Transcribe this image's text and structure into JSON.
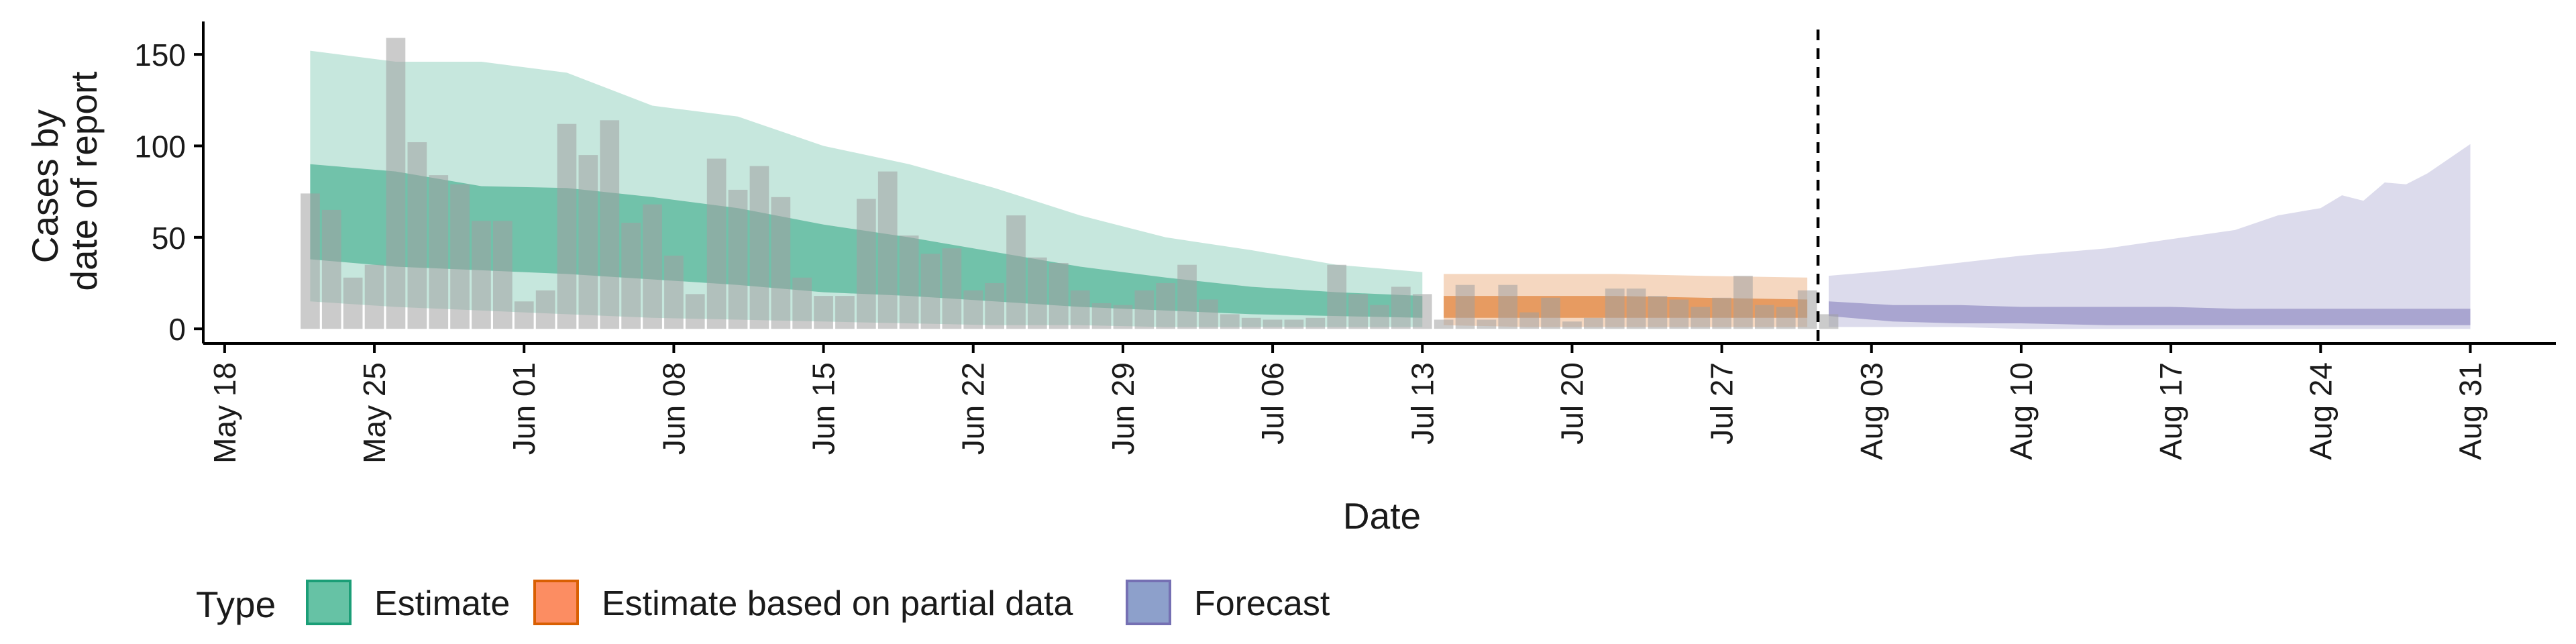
{
  "chart_data": {
    "type": "area",
    "xlabel": "Date",
    "ylabel_lines": [
      "Cases by",
      "date of report"
    ],
    "xlim": [
      "2020-05-17",
      "2020-09-04"
    ],
    "ylim": [
      -8,
      168
    ],
    "yticks": [
      0,
      50,
      100,
      150
    ],
    "xticks": [
      {
        "date": "2020-05-18",
        "label": "May 18"
      },
      {
        "date": "2020-05-25",
        "label": "May 25"
      },
      {
        "date": "2020-06-01",
        "label": "Jun 01"
      },
      {
        "date": "2020-06-08",
        "label": "Jun 08"
      },
      {
        "date": "2020-06-15",
        "label": "Jun 15"
      },
      {
        "date": "2020-06-22",
        "label": "Jun 22"
      },
      {
        "date": "2020-06-29",
        "label": "Jun 29"
      },
      {
        "date": "2020-07-06",
        "label": "Jul 06"
      },
      {
        "date": "2020-07-13",
        "label": "Jul 13"
      },
      {
        "date": "2020-07-20",
        "label": "Jul 20"
      },
      {
        "date": "2020-07-27",
        "label": "Jul 27"
      },
      {
        "date": "2020-08-03",
        "label": "Aug 03"
      },
      {
        "date": "2020-08-10",
        "label": "Aug 10"
      },
      {
        "date": "2020-08-17",
        "label": "Aug 17"
      },
      {
        "date": "2020-08-24",
        "label": "Aug 24"
      },
      {
        "date": "2020-08-31",
        "label": "Aug 31"
      }
    ],
    "forecast_line_date": "2020-08-01",
    "grid": false,
    "legend": {
      "title": "Type",
      "placement": "bottom-left",
      "entries": [
        {
          "label": "Estimate",
          "fill": "#66c2a5",
          "stroke": "#1b9e77"
        },
        {
          "label": "Estimate based on partial data",
          "fill": "#fc8d62",
          "stroke": "#d95f02"
        },
        {
          "label": "Forecast",
          "fill": "#8da0cb",
          "stroke": "#7570b3"
        }
      ]
    },
    "colors": {
      "estimate": "#1b9e77",
      "partial": "#d95f02",
      "forecast": "#7570b3",
      "bars": "#a0a0a0"
    },
    "reported_cases": {
      "start_date": "2020-05-22",
      "values": [
        74,
        65,
        28,
        35,
        159,
        102,
        84,
        79,
        59,
        59,
        15,
        21,
        112,
        95,
        114,
        58,
        68,
        40,
        19,
        93,
        76,
        89,
        72,
        28,
        18,
        18,
        71,
        86,
        51,
        41,
        44,
        21,
        25,
        62,
        39,
        36,
        21,
        14,
        13,
        21,
        25,
        35,
        16,
        8,
        6,
        5,
        5,
        6,
        35,
        19,
        13,
        23,
        19,
        5,
        24,
        5,
        24,
        9,
        17,
        4,
        6,
        22,
        22,
        18,
        16,
        12,
        17,
        29,
        13,
        12,
        21,
        8
      ]
    },
    "series": [
      {
        "name": "Estimate",
        "category": "estimate",
        "x": [
          "2020-05-22",
          "2020-05-26",
          "2020-05-30",
          "2020-06-03",
          "2020-06-07",
          "2020-06-11",
          "2020-06-15",
          "2020-06-19",
          "2020-06-23",
          "2020-06-27",
          "2020-07-01",
          "2020-07-05",
          "2020-07-09",
          "2020-07-13"
        ],
        "outer_upper": [
          152,
          146,
          146,
          140,
          122,
          116,
          100,
          90,
          77,
          62,
          50,
          43,
          35,
          31
        ],
        "outer_lower": [
          15,
          12,
          10,
          8,
          6,
          5,
          4,
          3,
          2,
          2,
          1,
          1,
          1,
          1
        ],
        "inner_upper": [
          90,
          86,
          78,
          77,
          72,
          66,
          57,
          50,
          42,
          34,
          28,
          23,
          20,
          18
        ],
        "inner_lower": [
          38,
          34,
          32,
          30,
          27,
          24,
          20,
          18,
          15,
          12,
          10,
          8,
          7,
          6
        ]
      },
      {
        "name": "Estimate based on partial data",
        "category": "partial",
        "x": [
          "2020-07-14",
          "2020-07-18",
          "2020-07-22",
          "2020-07-26",
          "2020-07-31"
        ],
        "outer_upper": [
          30,
          30,
          30,
          29,
          28
        ],
        "outer_lower": [
          2,
          1,
          1,
          1,
          1
        ],
        "inner_upper": [
          18,
          18,
          18,
          17,
          16
        ],
        "inner_lower": [
          6,
          6,
          6,
          6,
          6
        ]
      },
      {
        "name": "Forecast",
        "category": "forecast",
        "x": [
          "2020-08-01",
          "2020-08-04",
          "2020-08-07",
          "2020-08-10",
          "2020-08-14",
          "2020-08-17",
          "2020-08-20",
          "2020-08-22",
          "2020-08-24",
          "2020-08-25",
          "2020-08-26",
          "2020-08-27",
          "2020-08-28",
          "2020-08-29",
          "2020-08-31"
        ],
        "outer_upper": [
          29,
          32,
          36,
          40,
          44,
          49,
          54,
          62,
          66,
          73,
          70,
          80,
          79,
          85,
          101
        ],
        "outer_lower": [
          1,
          1,
          1,
          0,
          0,
          0,
          0,
          0,
          0,
          0,
          0,
          0,
          0,
          0,
          0
        ],
        "inner_upper": [
          15,
          13,
          13,
          12,
          12,
          12,
          11,
          11,
          11,
          11,
          11,
          11,
          11,
          11,
          11
        ],
        "inner_lower": [
          7,
          4,
          3,
          3,
          2,
          2,
          2,
          2,
          2,
          2,
          2,
          2,
          2,
          2,
          2
        ]
      }
    ]
  }
}
